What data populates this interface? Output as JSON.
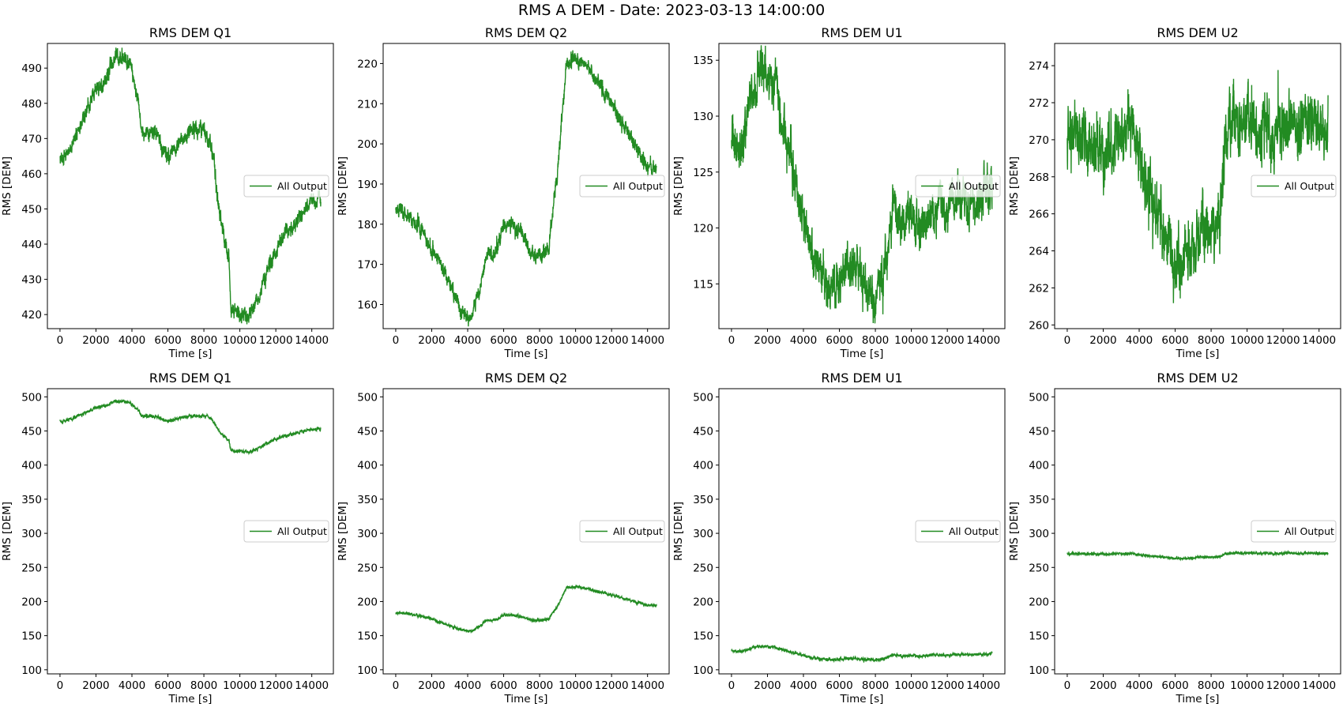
{
  "figure": {
    "suptitle": "RMS A DEM - Date: 2023-03-13 14:00:00"
  },
  "style": {
    "line_color": "#228B22",
    "axis_color": "#000000",
    "legend_border": "#cccccc"
  },
  "chart_data": [
    {
      "type": "line",
      "title": "RMS DEM Q1",
      "xlabel": "Time [s]",
      "ylabel": "RMS [DEM]",
      "xlim": [
        -700,
        15200
      ],
      "ylim": [
        416,
        497
      ],
      "xticks": [
        0,
        2000,
        4000,
        6000,
        8000,
        10000,
        12000,
        14000
      ],
      "yticks": [
        420,
        430,
        440,
        450,
        460,
        470,
        480,
        490
      ],
      "noise": 1.6,
      "seed": 11,
      "legend": {
        "label": "All Output",
        "loc": "center right"
      },
      "series": [
        {
          "name": "All Output",
          "x": [
            0,
            200,
            500,
            1000,
            1500,
            2000,
            2500,
            3000,
            3500,
            3900,
            4200,
            4400,
            4500,
            5000,
            5500,
            5700,
            6000,
            6500,
            7000,
            7500,
            8000,
            8300,
            8450,
            8600,
            8800,
            9000,
            9200,
            9400,
            9500,
            10000,
            10500,
            10700,
            11000,
            11500,
            12000,
            12500,
            13000,
            13500,
            14000,
            14500
          ],
          "y": [
            466,
            464,
            466,
            472,
            478,
            484,
            486,
            493,
            493,
            491,
            484,
            480,
            472,
            472,
            471,
            466,
            465,
            468,
            471,
            473,
            472,
            470,
            466,
            462,
            451,
            445,
            440,
            436,
            421,
            420,
            419,
            421,
            425,
            432,
            438,
            443,
            446,
            449,
            452,
            453
          ]
        }
      ]
    },
    {
      "type": "line",
      "title": "RMS DEM Q2",
      "xlabel": "Time [s]",
      "ylabel": "RMS [DEM]",
      "xlim": [
        -700,
        15200
      ],
      "ylim": [
        154,
        225
      ],
      "xticks": [
        0,
        2000,
        4000,
        6000,
        8000,
        10000,
        12000,
        14000
      ],
      "yticks": [
        160,
        170,
        180,
        190,
        200,
        210,
        220
      ],
      "noise": 1.3,
      "seed": 23,
      "legend": {
        "label": "All Output",
        "loc": "center right"
      },
      "series": [
        {
          "name": "All Output",
          "x": [
            0,
            500,
            1000,
            1500,
            2000,
            2500,
            3000,
            3500,
            4000,
            4200,
            4500,
            4800,
            5000,
            5500,
            5800,
            6000,
            6500,
            7000,
            7500,
            7800,
            8200,
            8500,
            8800,
            9000,
            9200,
            9500,
            10000,
            10500,
            11000,
            11500,
            12000,
            12500,
            13000,
            13500,
            14000,
            14500
          ],
          "y": [
            184,
            183,
            181,
            178,
            174,
            170,
            165,
            160,
            157,
            156,
            162,
            166,
            172,
            173,
            176,
            180,
            180,
            178,
            173,
            172,
            173,
            174,
            187,
            193,
            204,
            220,
            222,
            220,
            217,
            213,
            210,
            206,
            202,
            198,
            195,
            194
          ]
        }
      ]
    },
    {
      "type": "line",
      "title": "RMS DEM U1",
      "xlabel": "Time [s]",
      "ylabel": "RMS [DEM]",
      "xlim": [
        -700,
        15200
      ],
      "ylim": [
        111,
        136.5
      ],
      "xticks": [
        0,
        2000,
        4000,
        6000,
        8000,
        10000,
        12000,
        14000
      ],
      "yticks": [
        115,
        120,
        125,
        130,
        135
      ],
      "noise": 1.4,
      "seed": 37,
      "legend": {
        "label": "All Output",
        "loc": "center right"
      },
      "series": [
        {
          "name": "All Output",
          "x": [
            0,
            300,
            600,
            1000,
            1500,
            2000,
            2500,
            3000,
            3500,
            4000,
            4500,
            5000,
            5500,
            6000,
            6500,
            7000,
            7500,
            8000,
            8500,
            9000,
            9500,
            10000,
            10500,
            11000,
            11500,
            12000,
            12500,
            13000,
            13500,
            14000,
            14500
          ],
          "y": [
            129,
            127,
            127,
            131,
            134,
            134,
            132,
            128,
            125,
            121,
            117,
            116,
            115,
            115,
            117,
            116,
            115,
            114,
            116,
            122,
            120,
            121,
            120,
            121,
            122,
            121,
            123,
            122,
            122,
            123,
            124
          ]
        }
      ]
    },
    {
      "type": "line",
      "title": "RMS DEM U2",
      "xlabel": "Time [s]",
      "ylabel": "RMS [DEM]",
      "xlim": [
        -700,
        15200
      ],
      "ylim": [
        259.8,
        275.2
      ],
      "xticks": [
        0,
        2000,
        4000,
        6000,
        8000,
        10000,
        12000,
        14000
      ],
      "yticks": [
        260,
        262,
        264,
        266,
        268,
        270,
        272,
        274
      ],
      "noise": 1.1,
      "seed": 41,
      "legend": {
        "label": "All Output",
        "loc": "center right"
      },
      "series": [
        {
          "name": "All Output",
          "x": [
            0,
            500,
            1000,
            1500,
            2000,
            2500,
            3000,
            3500,
            4000,
            4500,
            5000,
            5500,
            6000,
            6500,
            7000,
            7500,
            8000,
            8500,
            8800,
            9000,
            9500,
            10000,
            10500,
            11000,
            11500,
            12000,
            12500,
            13000,
            13500,
            14000,
            14500
          ],
          "y": [
            270,
            270.5,
            270,
            269.5,
            269,
            270,
            270,
            271,
            269,
            267,
            266,
            265,
            263,
            263.5,
            264,
            265,
            265,
            266,
            270,
            271,
            271,
            271,
            270.5,
            271,
            270,
            271,
            271,
            270.5,
            271,
            271,
            270.5
          ]
        }
      ]
    },
    {
      "type": "line",
      "title": "RMS DEM Q1",
      "xlabel": "Time [s]",
      "ylabel": "RMS [DEM]",
      "xlim": [
        -700,
        15200
      ],
      "ylim": [
        94,
        512
      ],
      "xticks": [
        0,
        2000,
        4000,
        6000,
        8000,
        10000,
        12000,
        14000
      ],
      "yticks": [
        100,
        150,
        200,
        250,
        300,
        350,
        400,
        450,
        500
      ],
      "noise": 1.6,
      "seed": 53,
      "legend": {
        "label": "All Output",
        "loc": "center right"
      },
      "series": [
        {
          "name": "All Output",
          "x": [
            0,
            200,
            500,
            1000,
            1500,
            2000,
            2500,
            3000,
            3500,
            3900,
            4200,
            4400,
            4500,
            5000,
            5500,
            5700,
            6000,
            6500,
            7000,
            7500,
            8000,
            8300,
            8450,
            8600,
            8800,
            9000,
            9200,
            9400,
            9500,
            10000,
            10500,
            10700,
            11000,
            11500,
            12000,
            12500,
            13000,
            13500,
            14000,
            14500
          ],
          "y": [
            466,
            464,
            466,
            472,
            478,
            484,
            486,
            493,
            493,
            491,
            484,
            480,
            472,
            472,
            471,
            466,
            465,
            468,
            471,
            473,
            472,
            470,
            466,
            462,
            451,
            445,
            440,
            436,
            421,
            420,
            419,
            421,
            425,
            432,
            438,
            443,
            446,
            449,
            452,
            453
          ]
        }
      ]
    },
    {
      "type": "line",
      "title": "RMS DEM Q2",
      "xlabel": "Time [s]",
      "ylabel": "RMS [DEM]",
      "xlim": [
        -700,
        15200
      ],
      "ylim": [
        94,
        512
      ],
      "xticks": [
        0,
        2000,
        4000,
        6000,
        8000,
        10000,
        12000,
        14000
      ],
      "yticks": [
        100,
        150,
        200,
        250,
        300,
        350,
        400,
        450,
        500
      ],
      "noise": 1.3,
      "seed": 67,
      "legend": {
        "label": "All Output",
        "loc": "center right"
      },
      "series": [
        {
          "name": "All Output",
          "x": [
            0,
            500,
            1000,
            1500,
            2000,
            2500,
            3000,
            3500,
            4000,
            4200,
            4500,
            4800,
            5000,
            5500,
            5800,
            6000,
            6500,
            7000,
            7500,
            7800,
            8200,
            8500,
            8800,
            9000,
            9200,
            9500,
            10000,
            10500,
            11000,
            11500,
            12000,
            12500,
            13000,
            13500,
            14000,
            14500
          ],
          "y": [
            184,
            183,
            181,
            178,
            174,
            170,
            165,
            160,
            157,
            156,
            162,
            166,
            172,
            173,
            176,
            180,
            180,
            178,
            173,
            172,
            173,
            174,
            187,
            193,
            204,
            220,
            222,
            220,
            217,
            213,
            210,
            206,
            202,
            198,
            195,
            194
          ]
        }
      ]
    },
    {
      "type": "line",
      "title": "RMS DEM U1",
      "xlabel": "Time [s]",
      "ylabel": "RMS [DEM]",
      "xlim": [
        -700,
        15200
      ],
      "ylim": [
        94,
        512
      ],
      "xticks": [
        0,
        2000,
        4000,
        6000,
        8000,
        10000,
        12000,
        14000
      ],
      "yticks": [
        100,
        150,
        200,
        250,
        300,
        350,
        400,
        450,
        500
      ],
      "noise": 1.4,
      "seed": 79,
      "legend": {
        "label": "All Output",
        "loc": "center right"
      },
      "series": [
        {
          "name": "All Output",
          "x": [
            0,
            300,
            600,
            1000,
            1500,
            2000,
            2500,
            3000,
            3500,
            4000,
            4500,
            5000,
            5500,
            6000,
            6500,
            7000,
            7500,
            8000,
            8500,
            9000,
            9500,
            10000,
            10500,
            11000,
            11500,
            12000,
            12500,
            13000,
            13500,
            14000,
            14500
          ],
          "y": [
            129,
            127,
            127,
            131,
            134,
            134,
            132,
            128,
            125,
            121,
            117,
            116,
            115,
            115,
            117,
            116,
            115,
            114,
            116,
            122,
            120,
            121,
            120,
            121,
            122,
            121,
            123,
            122,
            122,
            123,
            124
          ]
        }
      ]
    },
    {
      "type": "line",
      "title": "RMS DEM U2",
      "xlabel": "Time [s]",
      "ylabel": "RMS [DEM]",
      "xlim": [
        -700,
        15200
      ],
      "ylim": [
        94,
        512
      ],
      "xticks": [
        0,
        2000,
        4000,
        6000,
        8000,
        10000,
        12000,
        14000
      ],
      "yticks": [
        100,
        150,
        200,
        250,
        300,
        350,
        400,
        450,
        500
      ],
      "noise": 1.1,
      "seed": 83,
      "legend": {
        "label": "All Output",
        "loc": "center right"
      },
      "series": [
        {
          "name": "All Output",
          "x": [
            0,
            500,
            1000,
            1500,
            2000,
            2500,
            3000,
            3500,
            4000,
            4500,
            5000,
            5500,
            6000,
            6500,
            7000,
            7500,
            8000,
            8500,
            8800,
            9000,
            9500,
            10000,
            10500,
            11000,
            11500,
            12000,
            12500,
            13000,
            13500,
            14000,
            14500
          ],
          "y": [
            270,
            270.5,
            270,
            269.5,
            269,
            270,
            270,
            271,
            269,
            267,
            266,
            265,
            263,
            263.5,
            264,
            265,
            265,
            266,
            270,
            271,
            271,
            271,
            270.5,
            271,
            270,
            271,
            271,
            270.5,
            271,
            271,
            270.5
          ]
        }
      ]
    }
  ]
}
